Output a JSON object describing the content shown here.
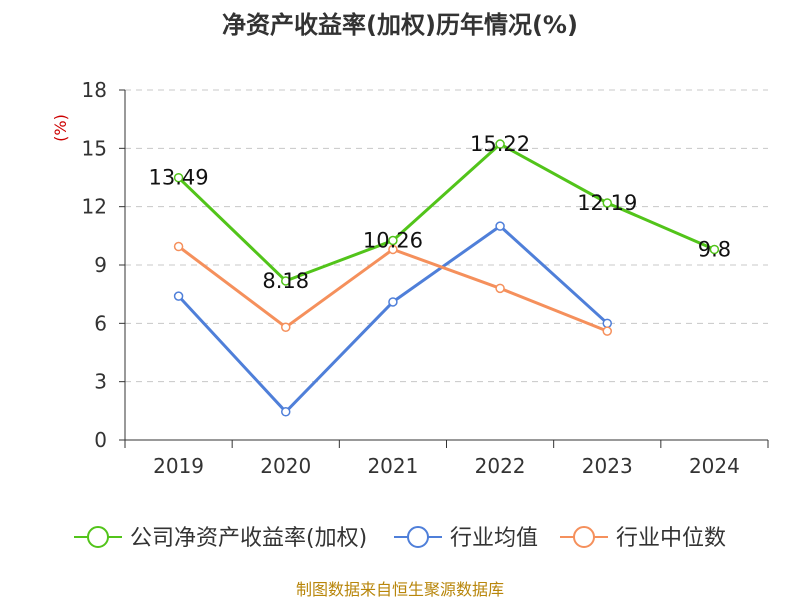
{
  "chart_data": {
    "type": "line",
    "title": "净资产收益率(加权)历年情况(%)",
    "ylabel": "(%)",
    "xlabel": "",
    "categories": [
      "2019",
      "2020",
      "2021",
      "2022",
      "2023",
      "2024"
    ],
    "ylim": [
      0,
      18
    ],
    "yticks": [
      0,
      3,
      6,
      9,
      12,
      15,
      18
    ],
    "grid": true,
    "series": [
      {
        "name": "公司净资产收益率(加权)",
        "color": "#52c41a",
        "values": [
          13.49,
          8.18,
          10.26,
          15.22,
          12.19,
          9.8
        ],
        "labels": [
          "13.49",
          "8.18",
          "10.26",
          "15.22",
          "12.19",
          "9.8"
        ]
      },
      {
        "name": "行业均值",
        "color": "#4f7fd9",
        "values": [
          7.4,
          1.45,
          7.1,
          11.0,
          6.0,
          null
        ],
        "labels": null
      },
      {
        "name": "行业中位数",
        "color": "#f5905c",
        "values": [
          9.95,
          5.8,
          9.8,
          7.8,
          5.6,
          null
        ],
        "labels": null
      }
    ],
    "legend_position": "bottom"
  },
  "footer": {
    "source": "制图数据来自恒生聚源数据库"
  }
}
